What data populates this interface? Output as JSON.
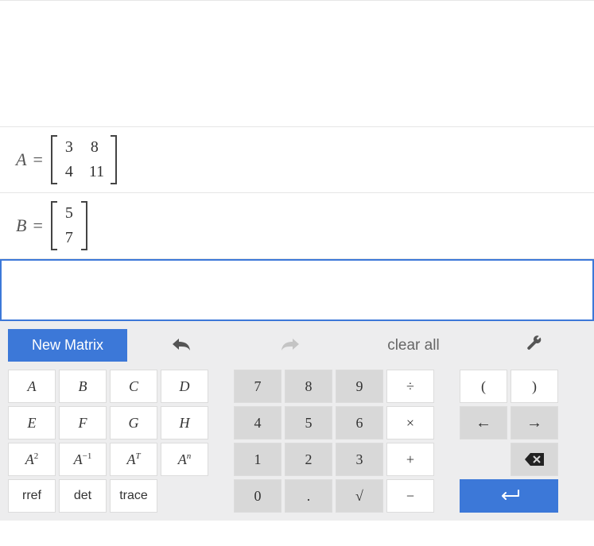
{
  "matrices": [
    {
      "label": "A",
      "rows": [
        [
          "3",
          "8"
        ],
        [
          "4",
          "11"
        ]
      ]
    },
    {
      "label": "B",
      "rows": [
        [
          "5"
        ],
        [
          "7"
        ]
      ]
    }
  ],
  "toolbar": {
    "new_matrix": "New Matrix",
    "clear_all": "clear all"
  },
  "keys": {
    "letters": [
      "A",
      "B",
      "C",
      "D",
      "E",
      "F",
      "G",
      "H"
    ],
    "powers": {
      "sq_base": "A",
      "sq_exp": "2",
      "inv_base": "A",
      "inv_exp": "−1",
      "tr_base": "A",
      "tr_exp": "T",
      "n_base": "A",
      "n_exp": "n"
    },
    "funcs": {
      "rref": "rref",
      "det": "det",
      "trace": "trace"
    },
    "digits": {
      "d7": "7",
      "d8": "8",
      "d9": "9",
      "d4": "4",
      "d5": "5",
      "d6": "6",
      "d1": "1",
      "d2": "2",
      "d3": "3",
      "d0": "0"
    },
    "ops": {
      "div": "÷",
      "mul": "×",
      "add": "+",
      "sub": "−",
      "dot": ".",
      "sqrt": "√"
    },
    "paren": {
      "open": "(",
      "close": ")"
    },
    "nav": {
      "left": "←",
      "right": "→"
    },
    "enter": "↵"
  },
  "colors": {
    "primary": "#3c78d8",
    "key_bg": "#ffffff",
    "key_shaded": "#d8d8d8",
    "panel_bg": "#ededee",
    "border": "#dcdcdc"
  }
}
